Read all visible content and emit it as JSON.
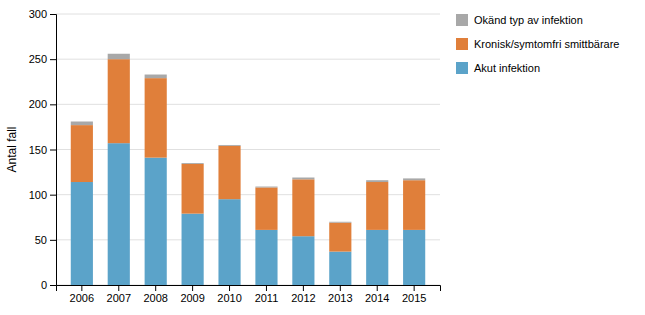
{
  "chart_data": {
    "type": "bar",
    "stacked": true,
    "categories": [
      "2006",
      "2007",
      "2008",
      "2009",
      "2010",
      "2011",
      "2012",
      "2013",
      "2014",
      "2015"
    ],
    "series": [
      {
        "name": "Akut infektion",
        "color": "#5ba3c9",
        "values": [
          114,
          157,
          141,
          79,
          95,
          61,
          54,
          37,
          61,
          61
        ]
      },
      {
        "name": "Kronisk/symtomfri smittbärare",
        "color": "#e07f3a",
        "values": [
          63,
          93,
          88,
          55,
          59,
          47,
          63,
          32,
          53,
          55
        ]
      },
      {
        "name": "Okänd typ av infektion",
        "color": "#a8a8a8",
        "values": [
          4,
          6,
          4,
          1,
          1,
          1,
          2,
          1,
          2,
          2
        ]
      }
    ],
    "ylabel": "Antal fall",
    "ylim": [
      0,
      300
    ],
    "yticks": [
      0,
      50,
      100,
      150,
      200,
      250,
      300
    ],
    "grid": true,
    "legend": "right"
  }
}
